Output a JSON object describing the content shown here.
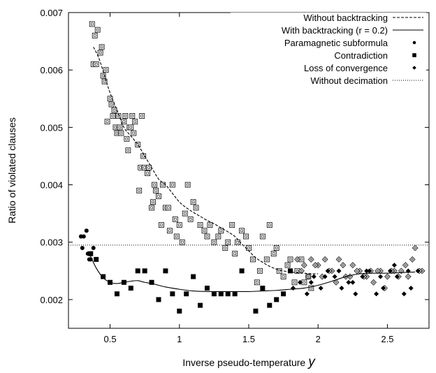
{
  "chart_data": {
    "type": "scatter",
    "xlabel": "Inverse pseudo-temperature",
    "xlabel_symbol": "y",
    "ylabel": "Ratio of violated clauses",
    "xlim": [
      0.2,
      2.8
    ],
    "ylim": [
      0.0015,
      0.007
    ],
    "x_ticks": [
      "0.5",
      "1",
      "1.5",
      "2",
      "2.5"
    ],
    "x_tick_values": [
      0.5,
      1.0,
      1.5,
      2.0,
      2.5
    ],
    "y_ticks": [
      "0.002",
      "0.003",
      "0.004",
      "0.005",
      "0.006",
      "0.007"
    ],
    "y_tick_values": [
      0.002,
      0.003,
      0.004,
      0.005,
      0.006,
      0.007
    ],
    "legend_position": "top-right",
    "series": [
      {
        "name": "Without backtracking",
        "style": "dashed-line",
        "x": [
          0.38,
          0.42,
          0.46,
          0.5,
          0.55,
          0.6,
          0.65,
          0.7,
          0.75,
          0.8,
          0.85,
          0.9,
          0.95,
          1.0,
          1.05,
          1.1,
          1.15,
          1.2,
          1.25,
          1.3,
          1.35,
          1.4,
          1.45,
          1.5,
          1.55,
          1.6,
          1.65,
          1.7,
          1.75,
          1.8,
          1.85,
          1.9,
          1.95,
          2.0
        ],
        "y": [
          0.0064,
          0.0062,
          0.0059,
          0.0056,
          0.0053,
          0.005,
          0.00485,
          0.0047,
          0.0045,
          0.0043,
          0.0041,
          0.004,
          0.00385,
          0.0037,
          0.0036,
          0.00352,
          0.00345,
          0.00338,
          0.00332,
          0.00325,
          0.00318,
          0.0031,
          0.00297,
          0.00285,
          0.00273,
          0.00265,
          0.00258,
          0.00253,
          0.0025,
          0.00248,
          0.00247,
          0.00246,
          0.00245,
          0.00245
        ]
      },
      {
        "name": "With backtracking (r = 0.2)",
        "style": "solid-line",
        "x": [
          0.35,
          0.4,
          0.45,
          0.5,
          0.55,
          0.6,
          0.65,
          0.7,
          0.75,
          0.8,
          0.9,
          1.0,
          1.1,
          1.2,
          1.3,
          1.4,
          1.5,
          1.6,
          1.7,
          1.8,
          1.9,
          2.0,
          2.1,
          2.2,
          2.3,
          2.4,
          2.5,
          2.6,
          2.7
        ],
        "y": [
          0.0028,
          0.00255,
          0.00238,
          0.0023,
          0.00228,
          0.0023,
          0.00232,
          0.00233,
          0.0023,
          0.00228,
          0.00222,
          0.00218,
          0.00215,
          0.00214,
          0.00214,
          0.00214,
          0.00214,
          0.00215,
          0.00216,
          0.00218,
          0.0022,
          0.00225,
          0.00232,
          0.0024,
          0.00245,
          0.00246,
          0.00246,
          0.00247,
          0.00248
        ]
      },
      {
        "name": "Paramagnetic subformula",
        "style": "circle",
        "x": [
          0.29,
          0.31,
          0.33,
          0.35,
          0.36,
          0.38,
          0.3,
          0.34
        ],
        "y": [
          0.0031,
          0.0031,
          0.0032,
          0.0027,
          0.0027,
          0.0029,
          0.0029,
          0.0028
        ]
      },
      {
        "name": "Contradiction",
        "style": "square",
        "x": [
          0.36,
          0.4,
          0.45,
          0.5,
          0.55,
          0.6,
          0.65,
          0.7,
          0.75,
          0.8,
          0.85,
          0.9,
          0.95,
          1.0,
          1.05,
          1.1,
          1.15,
          1.2,
          1.25,
          1.3,
          1.35,
          1.4,
          1.45,
          1.55,
          1.6,
          1.65,
          1.7,
          1.75,
          1.8
        ],
        "y": [
          0.0028,
          0.0027,
          0.0024,
          0.0023,
          0.0021,
          0.0023,
          0.0022,
          0.0025,
          0.0025,
          0.0023,
          0.002,
          0.0025,
          0.0021,
          0.0018,
          0.0021,
          0.0024,
          0.0019,
          0.0022,
          0.0021,
          0.0021,
          0.0021,
          0.0021,
          0.0025,
          0.0018,
          0.0022,
          0.0019,
          0.002,
          0.0021,
          0.0025
        ]
      },
      {
        "name": "Loss of convergence",
        "style": "diamond",
        "x": [
          1.82,
          1.87,
          1.92,
          1.97,
          2.02,
          2.07,
          2.12,
          2.17,
          2.22,
          2.27,
          2.32,
          2.37,
          2.42,
          2.47,
          2.52,
          2.57,
          2.62,
          2.67,
          2.72,
          1.95,
          2.05,
          2.15,
          2.25,
          2.35,
          2.45,
          2.55,
          2.65
        ],
        "y": [
          0.0022,
          0.0023,
          0.0021,
          0.0024,
          0.0022,
          0.0025,
          0.0024,
          0.0022,
          0.0023,
          0.0021,
          0.0024,
          0.0025,
          0.0021,
          0.0022,
          0.0025,
          0.0024,
          0.0021,
          0.0022,
          0.0025,
          0.0023,
          0.0024,
          0.0025,
          0.0023,
          0.0025,
          0.0024,
          0.0026,
          0.0025
        ]
      },
      {
        "name": "Without decimation",
        "style": "dotted-line",
        "x": [
          0.2,
          2.8
        ],
        "y": [
          0.00295,
          0.00295
        ]
      },
      {
        "name": "Without backtracking samples",
        "style": "open-square",
        "x": [
          0.37,
          0.38,
          0.39,
          0.4,
          0.41,
          0.43,
          0.44,
          0.45,
          0.46,
          0.47,
          0.48,
          0.5,
          0.51,
          0.52,
          0.53,
          0.54,
          0.55,
          0.56,
          0.57,
          0.58,
          0.6,
          0.61,
          0.62,
          0.63,
          0.64,
          0.65,
          0.66,
          0.67,
          0.68,
          0.7,
          0.71,
          0.72,
          0.73,
          0.74,
          0.75,
          0.77,
          0.78,
          0.8,
          0.81,
          0.82,
          0.83,
          0.85,
          0.87,
          0.88,
          0.9,
          0.92,
          0.93,
          0.95,
          0.97,
          0.98,
          1.0,
          1.02,
          1.04,
          1.06,
          1.08,
          1.1,
          1.12,
          1.15,
          1.18,
          1.2,
          1.22,
          1.25,
          1.28,
          1.3,
          1.33,
          1.35,
          1.38,
          1.4,
          1.42,
          1.45,
          1.48,
          1.5,
          1.53,
          1.56,
          1.58,
          1.6,
          1.63,
          1.65,
          1.68,
          1.7,
          1.72,
          1.75,
          1.78,
          1.8,
          1.83,
          1.85,
          1.88,
          1.9,
          1.93,
          1.95
        ],
        "y": [
          0.0068,
          0.0061,
          0.0066,
          0.0061,
          0.0067,
          0.0063,
          0.0064,
          0.0059,
          0.0058,
          0.006,
          0.0051,
          0.0055,
          0.0054,
          0.0052,
          0.0053,
          0.005,
          0.0049,
          0.0052,
          0.005,
          0.0049,
          0.0051,
          0.0052,
          0.0048,
          0.0046,
          0.005,
          0.005,
          0.0052,
          0.0049,
          0.0051,
          0.0047,
          0.0039,
          0.0043,
          0.0052,
          0.0045,
          0.0043,
          0.0042,
          0.0043,
          0.0036,
          0.0037,
          0.004,
          0.0039,
          0.0038,
          0.0033,
          0.004,
          0.0036,
          0.0036,
          0.0032,
          0.004,
          0.0034,
          0.0031,
          0.0033,
          0.003,
          0.0035,
          0.004,
          0.0034,
          0.0037,
          0.0036,
          0.0033,
          0.0032,
          0.0031,
          0.0033,
          0.003,
          0.0031,
          0.0032,
          0.0029,
          0.003,
          0.0033,
          0.0028,
          0.003,
          0.0032,
          0.0031,
          0.0029,
          0.0027,
          0.0023,
          0.0025,
          0.0031,
          0.0027,
          0.0033,
          0.0028,
          0.0029,
          0.0025,
          0.0024,
          0.0026,
          0.0027,
          0.0023,
          0.0025,
          0.0027,
          0.0023,
          0.0024,
          0.0022
        ]
      },
      {
        "name": "Loss of convergence samples",
        "style": "open-diamond",
        "x": [
          1.85,
          1.9,
          1.95,
          2.0,
          2.05,
          2.1,
          2.15,
          2.2,
          2.25,
          2.3,
          2.35,
          2.4,
          2.45,
          2.5,
          2.55,
          2.6,
          2.65,
          2.7,
          2.75,
          1.88,
          1.93,
          1.98,
          2.03,
          2.08,
          2.13,
          2.18,
          2.23,
          2.28,
          2.33,
          2.38,
          2.43,
          2.48,
          2.53,
          2.58,
          2.63,
          2.68,
          2.73
        ],
        "y": [
          0.0027,
          0.0026,
          0.0027,
          0.0026,
          0.0027,
          0.0025,
          0.0027,
          0.0024,
          0.0026,
          0.0025,
          0.0024,
          0.0023,
          0.0025,
          0.0024,
          0.0025,
          0.0025,
          0.0024,
          0.0029,
          0.0025,
          0.0025,
          0.0024,
          0.0026,
          0.0024,
          0.0025,
          0.0023,
          0.0026,
          0.0024,
          0.0025,
          0.0024,
          0.0025,
          0.0025,
          0.0022,
          0.0025,
          0.0024,
          0.0026,
          0.0027,
          0.0025
        ]
      }
    ]
  }
}
